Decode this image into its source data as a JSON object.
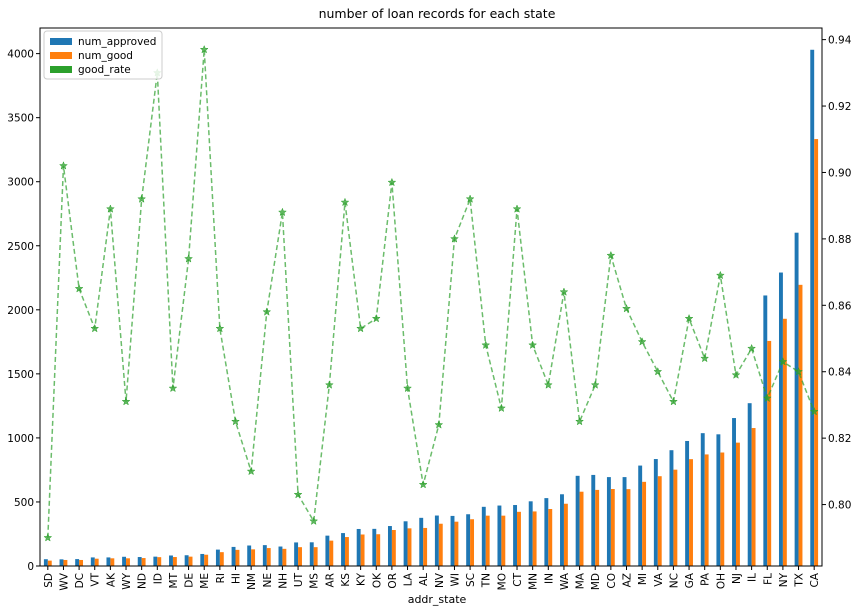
{
  "chart_data": {
    "type": "bar",
    "title": "number of loan records for each state",
    "xlabel": "addr_state",
    "ylabel": "",
    "categories": [
      "SD",
      "WV",
      "DC",
      "VT",
      "AK",
      "WY",
      "ND",
      "ID",
      "MT",
      "DE",
      "ME",
      "RI",
      "HI",
      "NM",
      "NE",
      "NH",
      "UT",
      "MS",
      "AR",
      "KS",
      "KY",
      "OK",
      "OR",
      "LA",
      "AL",
      "NV",
      "WI",
      "SC",
      "TN",
      "MO",
      "CT",
      "MN",
      "IN",
      "WA",
      "MA",
      "MD",
      "CO",
      "AZ",
      "MI",
      "VA",
      "NC",
      "GA",
      "PA",
      "OH",
      "NJ",
      "IL",
      "FL",
      "NY",
      "TX",
      "CA"
    ],
    "series": [
      {
        "name": "num_approved",
        "color": "#1f77b4",
        "axis": "left",
        "values": [
          53,
          52,
          54,
          67,
          67,
          72,
          70,
          73,
          82,
          84,
          94,
          128,
          149,
          160,
          163,
          152,
          184,
          185,
          237,
          257,
          289,
          290,
          312,
          349,
          376,
          394,
          391,
          404,
          462,
          472,
          476,
          505,
          530,
          560,
          704,
          711,
          694,
          694,
          784,
          835,
          904,
          976,
          1037,
          1028,
          1155,
          1271,
          2112,
          2291,
          2602,
          4030
        ]
      },
      {
        "name": "num_good",
        "color": "#ff7f0e",
        "axis": "left",
        "values": [
          42,
          47,
          47,
          57,
          60,
          60,
          62,
          69,
          70,
          73,
          88,
          108,
          126,
          130,
          140,
          134,
          147,
          147,
          198,
          226,
          246,
          248,
          281,
          294,
          297,
          330,
          346,
          365,
          393,
          393,
          423,
          426,
          445,
          486,
          580,
          594,
          601,
          600,
          657,
          701,
          752,
          834,
          871,
          886,
          963,
          1077,
          1757,
          1930,
          2195,
          3333
        ]
      },
      {
        "name": "good_rate",
        "color": "#2ca02c",
        "axis": "right",
        "style": "dashed",
        "marker": "star",
        "values": [
          0.79,
          0.902,
          0.865,
          0.853,
          0.889,
          0.831,
          0.892,
          0.93,
          0.835,
          0.874,
          0.937,
          0.853,
          0.825,
          0.81,
          0.858,
          0.888,
          0.803,
          0.795,
          0.836,
          0.891,
          0.853,
          0.856,
          0.897,
          0.835,
          0.806,
          0.824,
          0.88,
          0.892,
          0.848,
          0.829,
          0.889,
          0.848,
          0.836,
          0.864,
          0.825,
          0.836,
          0.875,
          0.859,
          0.849,
          0.84,
          0.831,
          0.856,
          0.844,
          0.869,
          0.839,
          0.847,
          0.832,
          0.843,
          0.84,
          0.828
        ]
      }
    ],
    "ylim_left": [
      0,
      4200
    ],
    "yticks_left": [
      0,
      500,
      1000,
      1500,
      2000,
      2500,
      3000,
      3500,
      4000
    ],
    "ylim_right": [
      0.7815,
      0.9435
    ],
    "yticks_right": [
      0.8,
      0.82,
      0.84,
      0.86,
      0.88,
      0.9,
      0.92,
      0.94
    ],
    "right_tick_decimals": 2,
    "legend_position": "upper-left",
    "grid": false
  }
}
